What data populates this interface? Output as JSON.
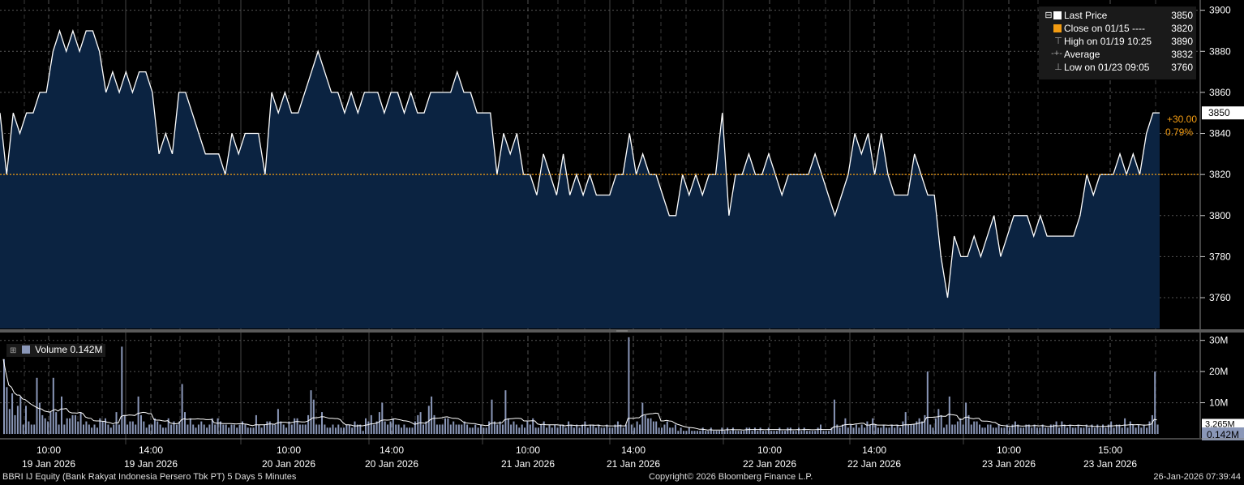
{
  "chart_data": [
    {
      "type": "area",
      "title": "BBRI IJ Equity (Bank Rakyat Indonesia Persero Tbk PT) 5 Days 5 Minutes",
      "ylim": [
        3745,
        3905
      ],
      "y_ticks": [
        "3760",
        "3780",
        "3800",
        "3820",
        "3840",
        "3860",
        "3880",
        "3900"
      ],
      "x_tick_labels": [
        {
          "time": "10:00",
          "date": "19 Jan 2026"
        },
        {
          "time": "14:00",
          "date": "19 Jan 2026"
        },
        {
          "time": "10:00",
          "date": "20 Jan 2026"
        },
        {
          "time": "14:00",
          "date": "20 Jan 2026"
        },
        {
          "time": "10:00",
          "date": "21 Jan 2026"
        },
        {
          "time": "14:00",
          "date": "21 Jan 2026"
        },
        {
          "time": "10:00",
          "date": "22 Jan 2026"
        },
        {
          "time": "14:00",
          "date": "22 Jan 2026"
        },
        {
          "time": "10:00",
          "date": "23 Jan 2026"
        },
        {
          "time": "15:00",
          "date": "23 Jan 2026"
        }
      ],
      "series": [
        {
          "name": "Last Price",
          "color": "#ffffff",
          "fill": "#0b2341",
          "values": [
            3850,
            3820,
            3850,
            3840,
            3850,
            3850,
            3860,
            3860,
            3880,
            3890,
            3880,
            3890,
            3880,
            3890,
            3890,
            3880,
            3860,
            3870,
            3860,
            3870,
            3860,
            3870,
            3870,
            3860,
            3830,
            3840,
            3830,
            3860,
            3860,
            3850,
            3840,
            3830,
            3830,
            3830,
            3820,
            3840,
            3830,
            3840,
            3840,
            3840,
            3820,
            3860,
            3850,
            3860,
            3850,
            3850,
            3860,
            3870,
            3880,
            3870,
            3860,
            3860,
            3850,
            3860,
            3850,
            3860,
            3860,
            3860,
            3850,
            3860,
            3860,
            3850,
            3860,
            3850,
            3850,
            3860,
            3860,
            3860,
            3860,
            3870,
            3860,
            3860,
            3850,
            3850,
            3850,
            3820,
            3840,
            3830,
            3840,
            3820,
            3820,
            3810,
            3830,
            3820,
            3810,
            3830,
            3810,
            3820,
            3810,
            3820,
            3810,
            3810,
            3810,
            3820,
            3820,
            3840,
            3820,
            3830,
            3820,
            3820,
            3810,
            3800,
            3800,
            3820,
            3810,
            3820,
            3810,
            3820,
            3820,
            3850,
            3800,
            3820,
            3820,
            3830,
            3820,
            3820,
            3830,
            3820,
            3810,
            3820,
            3820,
            3820,
            3820,
            3830,
            3820,
            3810,
            3800,
            3810,
            3820,
            3840,
            3830,
            3840,
            3820,
            3840,
            3820,
            3810,
            3810,
            3810,
            3830,
            3820,
            3810,
            3810,
            3780,
            3760,
            3790,
            3780,
            3780,
            3790,
            3780,
            3790,
            3800,
            3780,
            3790,
            3800,
            3800,
            3800,
            3790,
            3800,
            3790,
            3790,
            3790,
            3790,
            3790,
            3800,
            3820,
            3810,
            3820,
            3820,
            3820,
            3830,
            3820,
            3830,
            3820,
            3840,
            3850,
            3850
          ]
        },
        {
          "name": "Close on 01/15",
          "value": 3820,
          "color": "#f39c12",
          "style": "dashed"
        }
      ],
      "legend": [
        {
          "symbol": "■",
          "label": "Last Price",
          "value": "3850",
          "color": "#ffffff"
        },
        {
          "symbol": "■",
          "label": "Close on 01/15 ----",
          "value": "3820",
          "color": "#f39c12"
        },
        {
          "symbol": "⊤",
          "label": "High on 01/19 10:25",
          "value": "3890",
          "color": "#aaaaaa"
        },
        {
          "symbol": "-+-",
          "label": "Average",
          "value": "3832",
          "color": "#aaaaaa"
        },
        {
          "symbol": "⊥",
          "label": "Low on 01/23 09:05",
          "value": "3760",
          "color": "#aaaaaa"
        }
      ],
      "last_value_label": "3850",
      "change_label": "+30.00",
      "change_pct_label": "0.79%"
    },
    {
      "type": "bar",
      "series": [
        {
          "name": "Volume",
          "values": [
            24,
            15,
            8,
            13,
            6,
            9,
            12,
            3,
            9,
            4,
            3,
            3,
            18,
            10,
            6,
            5,
            4,
            7,
            18,
            7,
            3,
            12,
            3,
            5,
            5,
            6,
            6,
            4,
            7,
            3,
            4,
            3,
            2,
            3,
            2,
            5,
            4,
            5,
            3,
            2,
            3,
            7,
            3,
            28,
            6,
            3,
            4,
            4,
            3,
            12,
            6,
            4,
            2,
            3,
            3,
            5,
            4,
            3,
            2,
            2,
            5,
            3,
            4,
            3,
            4,
            16,
            7,
            3,
            5,
            3,
            2,
            3,
            4,
            3,
            2,
            3,
            5,
            3,
            5,
            4,
            3,
            3,
            2,
            3,
            3,
            2,
            3,
            4,
            3,
            2,
            2,
            2,
            6,
            3,
            2,
            3,
            4,
            4,
            3,
            3,
            8,
            4,
            3,
            2,
            4,
            3,
            5,
            5,
            3,
            3,
            3,
            6,
            14,
            11,
            3,
            3,
            7,
            3,
            2,
            2,
            3,
            2,
            3,
            2,
            2,
            3,
            3,
            2,
            4,
            3,
            3,
            1,
            5,
            4,
            6,
            3,
            4,
            7,
            10,
            4,
            3,
            4,
            5,
            3,
            3,
            2,
            3,
            2,
            2,
            2,
            4,
            6,
            7,
            3,
            4,
            9,
            12,
            6,
            3,
            3,
            3,
            5,
            5,
            3,
            4,
            3,
            3,
            3,
            4,
            3,
            2,
            2,
            3,
            2,
            3,
            2,
            2,
            4,
            11,
            4,
            3,
            4,
            3,
            14,
            5,
            3,
            4,
            3,
            2,
            3,
            2,
            4,
            3,
            5,
            2,
            2,
            3,
            4,
            2,
            3,
            2,
            3,
            2,
            3,
            3,
            2,
            4,
            3,
            2,
            3,
            2,
            3,
            4,
            2,
            3,
            3,
            2,
            3,
            2,
            2,
            3,
            2,
            2,
            3,
            4,
            3,
            2,
            3,
            31,
            3,
            2,
            4,
            3,
            10,
            6,
            5,
            5,
            4,
            4,
            2,
            2,
            3,
            4,
            2,
            2,
            3,
            1,
            2,
            1,
            1,
            2,
            1,
            1,
            1,
            1,
            2,
            1,
            1,
            2,
            1,
            1,
            1,
            2,
            1,
            2,
            1,
            2,
            1,
            1,
            1,
            1,
            2,
            2,
            1,
            2,
            1,
            2,
            1,
            1,
            2,
            1,
            1,
            1,
            2,
            1,
            1,
            2,
            2,
            1,
            1,
            2,
            1,
            2,
            1,
            1,
            1,
            1,
            2,
            3,
            1,
            1,
            1,
            2,
            11,
            3,
            2,
            3,
            5,
            2,
            3,
            2,
            3,
            2,
            3,
            2,
            4,
            3,
            5,
            3,
            2,
            2,
            3,
            2,
            2,
            3,
            2,
            3,
            2,
            4,
            7,
            3,
            3,
            3,
            4,
            5,
            4,
            6,
            20,
            3,
            2,
            5,
            8,
            6,
            2,
            3,
            12,
            3,
            3,
            4,
            5,
            3,
            10,
            6,
            3,
            4,
            4,
            3,
            2,
            2,
            3,
            3,
            2,
            2,
            3,
            2,
            2,
            3,
            2,
            3,
            4,
            3,
            2,
            2,
            3,
            3,
            2,
            3,
            2,
            2,
            3,
            2,
            2,
            3,
            3,
            4,
            2,
            4,
            3,
            2,
            3,
            2,
            2,
            3,
            2,
            2,
            3,
            2,
            3,
            2,
            3,
            2,
            3,
            2,
            3,
            4,
            2,
            3,
            3,
            2,
            5,
            2,
            4,
            3,
            2,
            3,
            2,
            3,
            2,
            4,
            6,
            20,
            3
          ]
        }
      ],
      "moving_average_color": "#ffffff",
      "ylim": [
        0,
        32
      ],
      "y_ticks": [
        "10M",
        "20M",
        "30M"
      ],
      "legend_label": "Volume 0.142M",
      "last_value_label": "0.142M",
      "avg_value_label": "3.265M"
    }
  ],
  "footer": {
    "left": "BBRI IJ Equity (Bank Rakyat Indonesia Persero Tbk PT) 5 Days 5 Minutes",
    "center": "Copyright© 2026 Bloomberg Finance L.P.",
    "right": "26-Jan-2026 07:39:44"
  },
  "colors": {
    "background": "#000000",
    "price_fill": "#0b2341",
    "grid": "#555555",
    "close_line": "#f39c12",
    "volume_bar": "#8a97b8"
  }
}
